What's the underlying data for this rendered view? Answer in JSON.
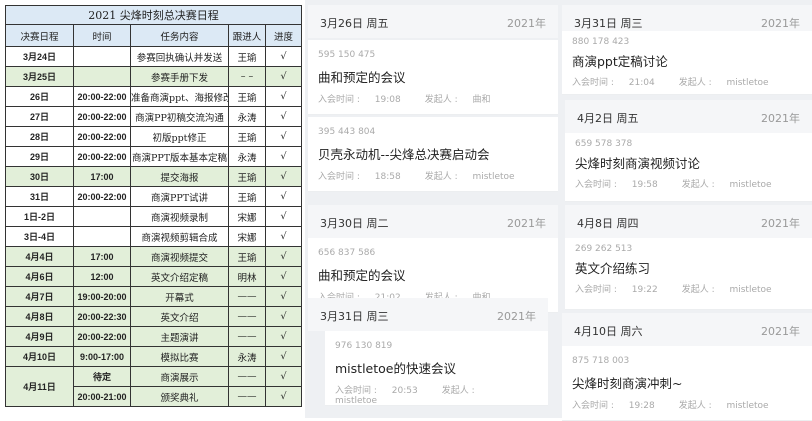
{
  "sheet": {
    "title": "2021 尖烽时刻总决赛日程",
    "headers": [
      "决赛日程",
      "时间",
      "任务内容",
      "跟进人",
      "进度"
    ],
    "rows": [
      [
        "3月24日",
        "",
        "参赛回执确认并发送",
        "王瑜",
        "√"
      ],
      [
        "3月25日",
        "",
        "参赛手册下发",
        "– –",
        "√"
      ],
      [
        "26日",
        "20:00-22:00",
        "准备商演ppt、海报修改",
        "王瑜",
        "√"
      ],
      [
        "27日",
        "20:00-22:00",
        "商演PP初稿交流沟通",
        "永涛",
        "√"
      ],
      [
        "28日",
        "20:00-22:00",
        "初版ppt修正",
        "王瑜",
        "√"
      ],
      [
        "29日",
        "20:00-22:00",
        "商演PPT版本基本定稿",
        "永涛",
        "√"
      ],
      [
        "30日",
        "17:00",
        "提交海报",
        "王瑜",
        "√"
      ],
      [
        "31日",
        "20:00-22:00",
        "商演PPT试讲",
        "王瑜",
        "√"
      ],
      [
        "1日-2日",
        "",
        "商演视频录制",
        "宋娜",
        "√"
      ],
      [
        "3日-4日",
        "",
        "商演视频剪辑合成",
        "宋娜",
        "√"
      ],
      [
        "4月4日",
        "17:00",
        "商演视频提交",
        "王瑜",
        "√"
      ],
      [
        "4月6日",
        "12:00",
        "英文介绍定稿",
        "明林",
        "√"
      ],
      [
        "4月7日",
        "19:00-20:00",
        "开幕式",
        "——",
        "√"
      ],
      [
        "4月8日",
        "20:00-22:30",
        "英文介绍",
        "——",
        "√"
      ],
      [
        "4月9日",
        "20:00-22:00",
        "主题演讲",
        "——",
        "√"
      ],
      [
        "4月10日",
        "9:00-17:00",
        "模拟比赛",
        "永涛",
        "√"
      ],
      [
        "4月11日",
        "待定",
        "商演展示",
        "——",
        "√"
      ],
      [
        "",
        "20:00-21:00",
        "颁奖典礼",
        "——",
        "√"
      ]
    ]
  },
  "meetings": {
    "join_label": "入会时间 : ",
    "host_label": "发起人 : ",
    "groups": [
      {
        "date": "3月26日 周五",
        "year": "2021年",
        "items": [
          {
            "id": "595 150 475",
            "title": "曲和预定的会议",
            "time": "19:08",
            "host": "曲和"
          },
          {
            "id": "395 443 804",
            "title": "贝壳永动机--尖烽总决赛启动会",
            "time": "18:58",
            "host": "mistletoe"
          }
        ]
      },
      {
        "date": "3月30日 周二",
        "year": "2021年",
        "items": [
          {
            "id": "656 837 586",
            "title": "曲和预定的会议",
            "time": "21:02",
            "host": "曲和"
          }
        ]
      },
      {
        "date": "3月31日 周三",
        "year": "2021年",
        "items": [
          {
            "id": "976 130 819",
            "title": "mistletoe的快速会议",
            "time": "20:53",
            "host": "mistletoe"
          }
        ]
      },
      {
        "date": "3月31日 周三",
        "year": "2021年",
        "items": [
          {
            "id": "880 178 423",
            "title": "商演ppt定稿讨论",
            "time": "21:04",
            "host": "mistletoe"
          }
        ]
      },
      {
        "date": "4月2日 周五",
        "year": "2021年",
        "items": [
          {
            "id": "659 578 378",
            "title": "尖烽时刻商演视频讨论",
            "time": "19:58",
            "host": "mistletoe"
          }
        ]
      },
      {
        "date": "4月8日 周四",
        "year": "2021年",
        "items": [
          {
            "id": "269 262 513",
            "title": "英文介绍练习",
            "time": "19:22",
            "host": "mistletoe"
          }
        ]
      },
      {
        "date": "4月10日 周六",
        "year": "2021年",
        "items": [
          {
            "id": "875 718 003",
            "title": "尖烽时刻商演冲刺~",
            "time": "19:28",
            "host": "mistletoe"
          }
        ]
      }
    ]
  },
  "colors": {
    "header_blue": "#dce9f5",
    "row_green": "#e2efd9"
  }
}
